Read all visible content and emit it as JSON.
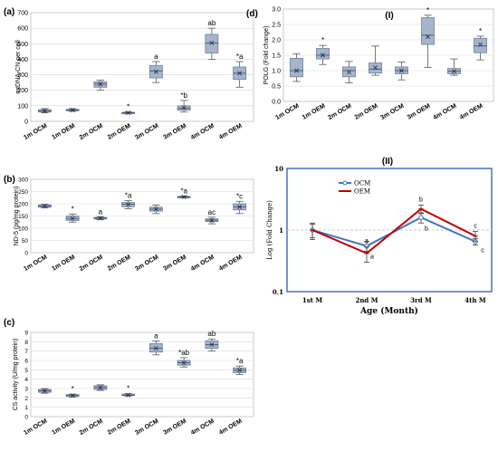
{
  "chart_data": [
    {
      "panel": "(a)",
      "type": "box",
      "ylabel": "mtDNA-CN per cell",
      "ylim": [
        0,
        700
      ],
      "yticks": [
        0,
        100,
        200,
        300,
        400,
        500,
        600,
        700
      ],
      "categories": [
        "1m OCM",
        "1m OEM",
        "2m OCM",
        "2m OEM",
        "3m OCM",
        "3m OEM",
        "4m OCM",
        "4m OEM"
      ],
      "boxes": [
        {
          "min": 55,
          "q1": 60,
          "median": 68,
          "q3": 75,
          "max": 82,
          "mean": 68,
          "label": ""
        },
        {
          "min": 65,
          "q1": 68,
          "median": 73,
          "q3": 77,
          "max": 82,
          "mean": 72,
          "label": ""
        },
        {
          "min": 200,
          "q1": 220,
          "median": 240,
          "q3": 255,
          "max": 265,
          "mean": 240,
          "label": ""
        },
        {
          "min": 48,
          "q1": 52,
          "median": 55,
          "q3": 58,
          "max": 62,
          "mean": 55,
          "label": "*"
        },
        {
          "min": 250,
          "q1": 280,
          "median": 325,
          "q3": 360,
          "max": 385,
          "mean": 320,
          "label": "a"
        },
        {
          "min": 60,
          "q1": 72,
          "median": 85,
          "q3": 100,
          "max": 135,
          "mean": 88,
          "label": "*b"
        },
        {
          "min": 400,
          "q1": 440,
          "median": 505,
          "q3": 560,
          "max": 600,
          "mean": 505,
          "label": "ab"
        },
        {
          "min": 220,
          "q1": 270,
          "median": 310,
          "q3": 350,
          "max": 385,
          "mean": 310,
          "label": "*a"
        }
      ]
    },
    {
      "panel": "(b)",
      "type": "box",
      "ylabel": "ND-5 (pg/mg protein)",
      "ylim": [
        0,
        300
      ],
      "yticks": [
        0,
        50,
        100,
        150,
        200,
        250,
        300
      ],
      "categories": [
        "1m OCM",
        "1m OEM",
        "2m OCM",
        "2m OEM",
        "3m OCM",
        "3m OEM",
        "4m OCM",
        "4m OEM"
      ],
      "boxes": [
        {
          "min": 183,
          "q1": 186,
          "median": 191,
          "q3": 196,
          "max": 198,
          "mean": 191,
          "label": ""
        },
        {
          "min": 125,
          "q1": 132,
          "median": 140,
          "q3": 150,
          "max": 158,
          "mean": 140,
          "label": "*"
        },
        {
          "min": 135,
          "q1": 138,
          "median": 141,
          "q3": 144,
          "max": 147,
          "mean": 141,
          "label": "a"
        },
        {
          "min": 180,
          "q1": 188,
          "median": 198,
          "q3": 205,
          "max": 213,
          "mean": 197,
          "label": "*a"
        },
        {
          "min": 160,
          "q1": 170,
          "median": 178,
          "q3": 186,
          "max": 195,
          "mean": 178,
          "label": ""
        },
        {
          "min": 224,
          "q1": 226,
          "median": 228,
          "q3": 230,
          "max": 232,
          "mean": 228,
          "label": "*a"
        },
        {
          "min": 118,
          "q1": 127,
          "median": 133,
          "q3": 138,
          "max": 145,
          "mean": 132,
          "label": "ac"
        },
        {
          "min": 160,
          "q1": 175,
          "median": 188,
          "q3": 200,
          "max": 210,
          "mean": 187,
          "label": "*c"
        }
      ]
    },
    {
      "panel": "(c)",
      "type": "box",
      "ylabel": "CS activity (U/mg protein)",
      "ylim": [
        0,
        9
      ],
      "yticks": [
        0,
        1,
        2,
        3,
        4,
        5,
        6,
        7,
        8,
        9
      ],
      "categories": [
        "1m OCM",
        "1m OEM",
        "2m OCM",
        "2m OEM",
        "3m OCM",
        "3m OEM",
        "4m OCM",
        "4m OEM"
      ],
      "boxes": [
        {
          "min": 2.5,
          "q1": 2.6,
          "median": 2.75,
          "q3": 2.9,
          "max": 3.0,
          "mean": 2.75,
          "label": ""
        },
        {
          "min": 2.1,
          "q1": 2.15,
          "median": 2.25,
          "q3": 2.35,
          "max": 2.4,
          "mean": 2.25,
          "label": "*"
        },
        {
          "min": 2.8,
          "q1": 2.9,
          "median": 3.1,
          "q3": 3.3,
          "max": 3.4,
          "mean": 3.1,
          "label": ""
        },
        {
          "min": 2.2,
          "q1": 2.25,
          "median": 2.3,
          "q3": 2.4,
          "max": 2.45,
          "mean": 2.3,
          "label": "*"
        },
        {
          "min": 6.6,
          "q1": 6.9,
          "median": 7.3,
          "q3": 7.8,
          "max": 8.1,
          "mean": 7.3,
          "label": "a"
        },
        {
          "min": 5.3,
          "q1": 5.5,
          "median": 5.75,
          "q3": 6.0,
          "max": 6.3,
          "mean": 5.75,
          "label": "*ab"
        },
        {
          "min": 7.0,
          "q1": 7.3,
          "median": 7.7,
          "q3": 8.1,
          "max": 8.3,
          "mean": 7.7,
          "label": "ab"
        },
        {
          "min": 4.5,
          "q1": 4.7,
          "median": 4.95,
          "q3": 5.2,
          "max": 5.4,
          "mean": 4.95,
          "label": "*a"
        }
      ]
    },
    {
      "panel": "(d)",
      "subpanel": "(I)",
      "type": "box",
      "ylabel": "POLG (Fold change)",
      "ylim": [
        0,
        3.0
      ],
      "yticks": [
        "0.0",
        "0.5",
        "1.0",
        "1.5",
        "2.0",
        "2.5",
        "3.0"
      ],
      "categories": [
        "1m OCM",
        "1m OEM",
        "2m OCM",
        "2m OEM",
        "3m OCM",
        "3m OEM",
        "4m OCM",
        "4m OEM"
      ],
      "boxes": [
        {
          "min": 0.65,
          "q1": 0.8,
          "median": 1.0,
          "q3": 1.4,
          "max": 1.55,
          "mean": 1.0,
          "label": ""
        },
        {
          "min": 1.2,
          "q1": 1.38,
          "median": 1.5,
          "q3": 1.72,
          "max": 1.82,
          "mean": 1.5,
          "label": "*"
        },
        {
          "min": 0.6,
          "q1": 0.8,
          "median": 1.0,
          "q3": 1.12,
          "max": 1.3,
          "mean": 0.95,
          "label": ""
        },
        {
          "min": 0.85,
          "q1": 0.92,
          "median": 1.05,
          "q3": 1.25,
          "max": 1.8,
          "mean": 1.1,
          "label": ""
        },
        {
          "min": 0.7,
          "q1": 0.9,
          "median": 1.0,
          "q3": 1.12,
          "max": 1.28,
          "mean": 1.0,
          "label": ""
        },
        {
          "min": 1.1,
          "q1": 1.85,
          "median": 2.15,
          "q3": 2.72,
          "max": 2.8,
          "mean": 2.1,
          "label": "*"
        },
        {
          "min": 0.85,
          "q1": 0.9,
          "median": 0.98,
          "q3": 1.07,
          "max": 1.38,
          "mean": 0.98,
          "label": ""
        },
        {
          "min": 1.35,
          "q1": 1.58,
          "median": 1.8,
          "q3": 2.05,
          "max": 2.12,
          "mean": 1.85,
          "label": "*"
        }
      ]
    },
    {
      "panel": "(d)",
      "subpanel": "(II)",
      "type": "line",
      "ylabel": "Log (Fold Change)",
      "xlabel": "Age (Month)",
      "yscale": "log",
      "ylim": [
        0.1,
        10
      ],
      "yticks": [
        "0.1",
        "1",
        "10"
      ],
      "categories": [
        "1st M",
        "2nd M",
        "3rd M",
        "4th M"
      ],
      "legend": "top",
      "series": [
        {
          "name": "OCM",
          "color": "#4472c4",
          "values": [
            1.0,
            0.55,
            1.6,
            0.65
          ],
          "err": [
            0.25,
            0.1,
            0.3,
            0.08
          ],
          "labels": [
            "",
            "a",
            "b",
            "c"
          ]
        },
        {
          "name": "OEM",
          "color": "#c00000",
          "values": [
            1.0,
            0.42,
            2.2,
            0.8
          ],
          "err": [
            0.3,
            0.12,
            0.35,
            0.15
          ],
          "labels": [
            "",
            "a",
            "b",
            "c"
          ]
        }
      ]
    }
  ]
}
